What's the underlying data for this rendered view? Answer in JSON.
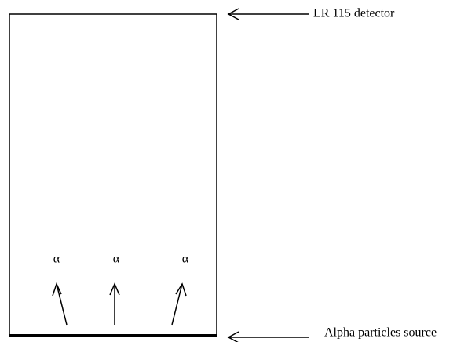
{
  "labels": {
    "detector": "LR 115 detector",
    "source": "Alpha particles source"
  },
  "particles": [
    "α",
    "α",
    "α"
  ]
}
